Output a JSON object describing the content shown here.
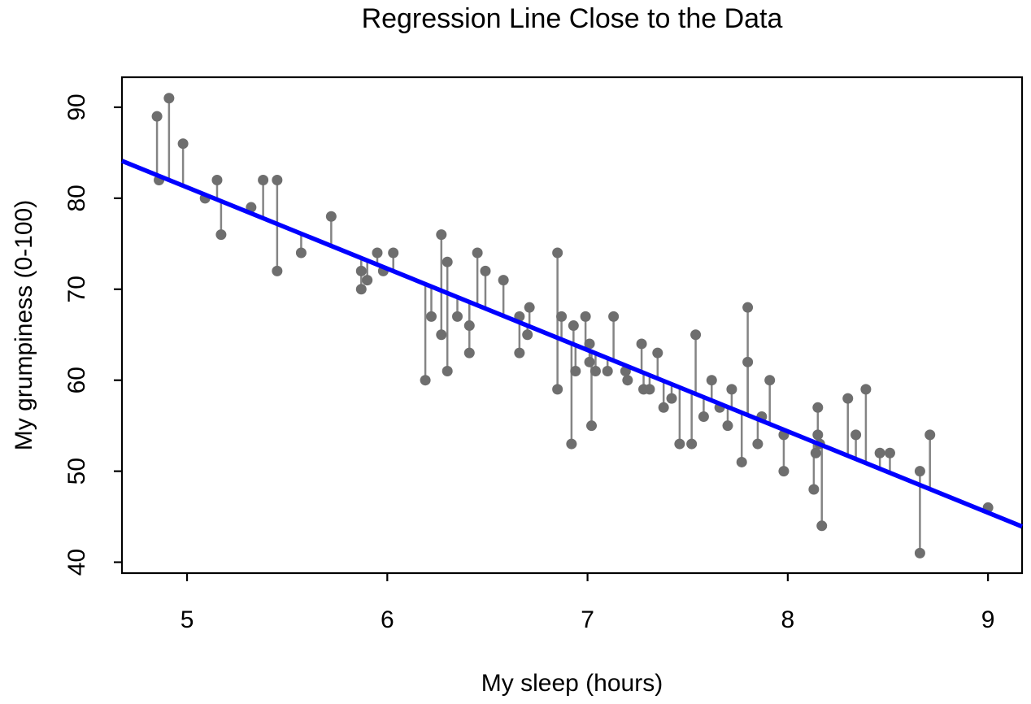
{
  "chart_data": {
    "type": "scatter",
    "title": "Regression Line Close to the Data",
    "xlabel": "My sleep (hours)",
    "ylabel": "My grumpiness (0-100)",
    "x_ticks": [
      5,
      6,
      7,
      8,
      9
    ],
    "y_ticks": [
      40,
      50,
      60,
      70,
      80,
      90
    ],
    "xlim": [
      4.675,
      9.17
    ],
    "ylim": [
      38.8,
      93.3
    ],
    "grid": false,
    "legend": null,
    "regression_line": {
      "intercept": 125.9,
      "slope": -8.94,
      "left_end": [
        4.675,
        84.1
      ],
      "right_end": [
        9.17,
        43.9
      ]
    },
    "residual_segments": "vertical segment from each observation to the fitted line at the same x",
    "points": [
      [
        4.85,
        89
      ],
      [
        4.86,
        82
      ],
      [
        4.91,
        91
      ],
      [
        4.98,
        86
      ],
      [
        5.09,
        80
      ],
      [
        5.15,
        82
      ],
      [
        5.17,
        76
      ],
      [
        5.32,
        79
      ],
      [
        5.38,
        82
      ],
      [
        5.45,
        82
      ],
      [
        5.45,
        72
      ],
      [
        5.57,
        74
      ],
      [
        5.72,
        78
      ],
      [
        5.87,
        72
      ],
      [
        5.87,
        70
      ],
      [
        5.9,
        71
      ],
      [
        5.95,
        74
      ],
      [
        5.98,
        72
      ],
      [
        6.03,
        74
      ],
      [
        6.19,
        60
      ],
      [
        6.22,
        67
      ],
      [
        6.27,
        76
      ],
      [
        6.27,
        65
      ],
      [
        6.3,
        73
      ],
      [
        6.3,
        61
      ],
      [
        6.35,
        67
      ],
      [
        6.41,
        66
      ],
      [
        6.41,
        63
      ],
      [
        6.45,
        74
      ],
      [
        6.49,
        72
      ],
      [
        6.58,
        71
      ],
      [
        6.66,
        67
      ],
      [
        6.66,
        63
      ],
      [
        6.7,
        65
      ],
      [
        6.71,
        68
      ],
      [
        6.85,
        74
      ],
      [
        6.85,
        59
      ],
      [
        6.87,
        67
      ],
      [
        6.92,
        53
      ],
      [
        6.93,
        66
      ],
      [
        6.94,
        61
      ],
      [
        6.99,
        67
      ],
      [
        7.01,
        64
      ],
      [
        7.01,
        62
      ],
      [
        7.02,
        55
      ],
      [
        7.04,
        61
      ],
      [
        7.1,
        61
      ],
      [
        7.13,
        67
      ],
      [
        7.19,
        61
      ],
      [
        7.2,
        60
      ],
      [
        7.27,
        64
      ],
      [
        7.28,
        59
      ],
      [
        7.31,
        59
      ],
      [
        7.35,
        63
      ],
      [
        7.38,
        57
      ],
      [
        7.42,
        58
      ],
      [
        7.46,
        53
      ],
      [
        7.52,
        53
      ],
      [
        7.54,
        65
      ],
      [
        7.58,
        56
      ],
      [
        7.62,
        60
      ],
      [
        7.66,
        57
      ],
      [
        7.7,
        55
      ],
      [
        7.72,
        59
      ],
      [
        7.77,
        51
      ],
      [
        7.8,
        68
      ],
      [
        7.8,
        62
      ],
      [
        7.85,
        53
      ],
      [
        7.87,
        56
      ],
      [
        7.91,
        60
      ],
      [
        7.98,
        54
      ],
      [
        7.98,
        50
      ],
      [
        8.13,
        48
      ],
      [
        8.14,
        52
      ],
      [
        8.15,
        57
      ],
      [
        8.15,
        54
      ],
      [
        8.16,
        53
      ],
      [
        8.17,
        44
      ],
      [
        8.3,
        58
      ],
      [
        8.34,
        54
      ],
      [
        8.39,
        59
      ],
      [
        8.46,
        52
      ],
      [
        8.51,
        52
      ],
      [
        8.66,
        50
      ],
      [
        8.66,
        41
      ],
      [
        8.71,
        54
      ],
      [
        9.0,
        46
      ]
    ],
    "colors": {
      "point": "#6e6e6e",
      "residual": "#848484",
      "line": "#0000ff",
      "axis": "#000000",
      "background": "#ffffff"
    }
  }
}
